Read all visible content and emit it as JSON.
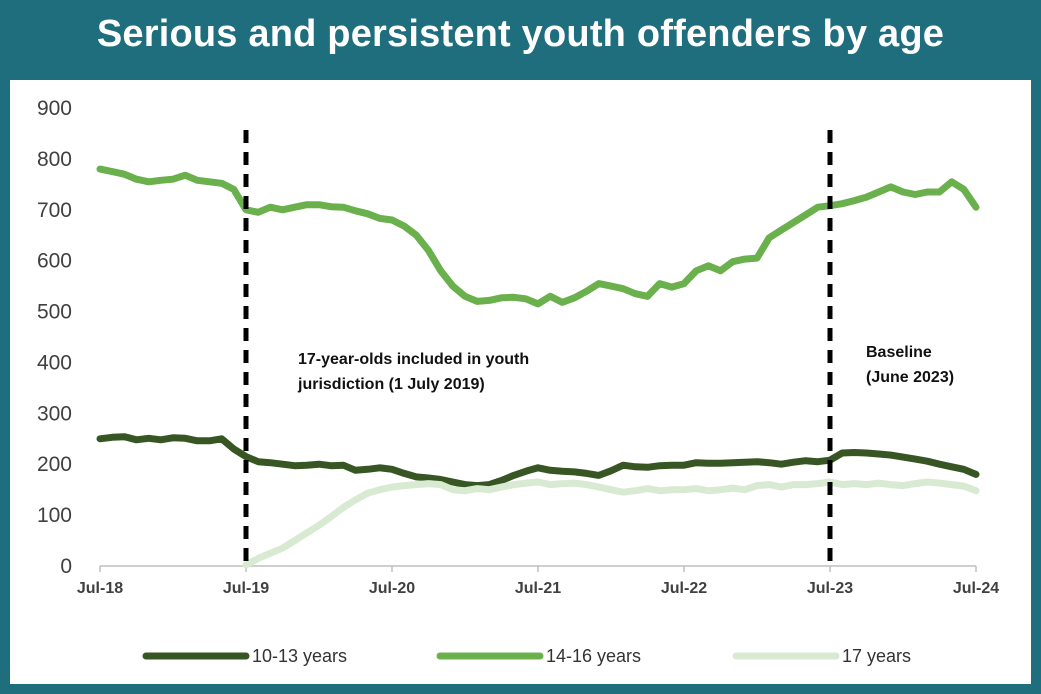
{
  "title": "Serious and persistent youth offenders by age",
  "chart_data": {
    "type": "line",
    "title": "Serious and persistent youth offenders by age",
    "xlabel": "",
    "ylabel": "",
    "ylim": [
      0,
      900
    ],
    "yticks": [
      0,
      100,
      200,
      300,
      400,
      500,
      600,
      700,
      800,
      900
    ],
    "xlim": [
      0,
      72
    ],
    "xticks": [
      {
        "x": 0,
        "label": "Jul-18"
      },
      {
        "x": 12,
        "label": "Jul-19"
      },
      {
        "x": 24,
        "label": "Jul-20"
      },
      {
        "x": 36,
        "label": "Jul-21"
      },
      {
        "x": 48,
        "label": "Jul-22"
      },
      {
        "x": 60,
        "label": "Jul-23"
      },
      {
        "x": 72,
        "label": "Jul-24"
      }
    ],
    "grid": false,
    "legend_position": "bottom",
    "vlines": [
      {
        "x": 12,
        "label": [
          "17-year-olds included in youth",
          "jurisdiction (1 July 2019)"
        ]
      },
      {
        "x": 60,
        "label": [
          "Baseline",
          "(June 2023)"
        ]
      }
    ],
    "series": [
      {
        "name": "10-13 years",
        "color": "#375623",
        "width": 7,
        "points": [
          [
            0,
            250
          ],
          [
            1,
            253
          ],
          [
            2,
            254
          ],
          [
            3,
            248
          ],
          [
            4,
            251
          ],
          [
            5,
            248
          ],
          [
            6,
            252
          ],
          [
            7,
            251
          ],
          [
            8,
            246
          ],
          [
            9,
            246
          ],
          [
            10,
            250
          ],
          [
            11,
            230
          ],
          [
            12,
            215
          ],
          [
            13,
            205
          ],
          [
            14,
            203
          ],
          [
            15,
            200
          ],
          [
            16,
            197
          ],
          [
            17,
            198
          ],
          [
            18,
            200
          ],
          [
            19,
            197
          ],
          [
            20,
            198
          ],
          [
            21,
            188
          ],
          [
            22,
            190
          ],
          [
            23,
            193
          ],
          [
            24,
            190
          ],
          [
            25,
            182
          ],
          [
            26,
            175
          ],
          [
            27,
            173
          ],
          [
            28,
            170
          ],
          [
            29,
            165
          ],
          [
            30,
            160
          ],
          [
            31,
            158
          ],
          [
            32,
            160
          ],
          [
            33,
            168
          ],
          [
            34,
            178
          ],
          [
            35,
            186
          ],
          [
            36,
            193
          ],
          [
            37,
            188
          ],
          [
            38,
            186
          ],
          [
            39,
            185
          ],
          [
            40,
            182
          ],
          [
            41,
            178
          ],
          [
            42,
            187
          ],
          [
            43,
            198
          ],
          [
            44,
            195
          ],
          [
            45,
            194
          ],
          [
            46,
            197
          ],
          [
            47,
            198
          ],
          [
            48,
            198
          ],
          [
            49,
            203
          ],
          [
            50,
            202
          ],
          [
            51,
            202
          ],
          [
            52,
            203
          ],
          [
            53,
            204
          ],
          [
            54,
            205
          ],
          [
            55,
            203
          ],
          [
            56,
            200
          ],
          [
            57,
            204
          ],
          [
            58,
            207
          ],
          [
            59,
            205
          ],
          [
            60,
            208
          ],
          [
            61,
            222
          ],
          [
            62,
            223
          ],
          [
            63,
            222
          ],
          [
            64,
            220
          ],
          [
            65,
            218
          ],
          [
            66,
            214
          ],
          [
            67,
            210
          ],
          [
            68,
            206
          ],
          [
            69,
            200
          ],
          [
            70,
            195
          ],
          [
            71,
            190
          ],
          [
            72,
            180
          ]
        ]
      },
      {
        "name": "14-16 years",
        "color": "#6ab04c",
        "width": 7,
        "points": [
          [
            0,
            780
          ],
          [
            1,
            775
          ],
          [
            2,
            770
          ],
          [
            3,
            760
          ],
          [
            4,
            755
          ],
          [
            5,
            758
          ],
          [
            6,
            760
          ],
          [
            7,
            768
          ],
          [
            8,
            758
          ],
          [
            9,
            755
          ],
          [
            10,
            752
          ],
          [
            11,
            740
          ],
          [
            12,
            700
          ],
          [
            13,
            695
          ],
          [
            14,
            705
          ],
          [
            15,
            700
          ],
          [
            16,
            705
          ],
          [
            17,
            710
          ],
          [
            18,
            710
          ],
          [
            19,
            706
          ],
          [
            20,
            705
          ],
          [
            21,
            698
          ],
          [
            22,
            692
          ],
          [
            23,
            683
          ],
          [
            24,
            680
          ],
          [
            25,
            668
          ],
          [
            26,
            650
          ],
          [
            27,
            620
          ],
          [
            28,
            580
          ],
          [
            29,
            550
          ],
          [
            30,
            530
          ],
          [
            31,
            520
          ],
          [
            32,
            522
          ],
          [
            33,
            527
          ],
          [
            34,
            528
          ],
          [
            35,
            525
          ],
          [
            36,
            515
          ],
          [
            37,
            530
          ],
          [
            38,
            518
          ],
          [
            39,
            527
          ],
          [
            40,
            540
          ],
          [
            41,
            555
          ],
          [
            42,
            550
          ],
          [
            43,
            545
          ],
          [
            44,
            535
          ],
          [
            45,
            530
          ],
          [
            46,
            555
          ],
          [
            47,
            548
          ],
          [
            48,
            555
          ],
          [
            49,
            580
          ],
          [
            50,
            590
          ],
          [
            51,
            580
          ],
          [
            52,
            598
          ],
          [
            53,
            603
          ],
          [
            54,
            605
          ],
          [
            55,
            645
          ],
          [
            56,
            660
          ],
          [
            57,
            675
          ],
          [
            58,
            690
          ],
          [
            59,
            705
          ],
          [
            60,
            708
          ],
          [
            61,
            712
          ],
          [
            62,
            718
          ],
          [
            63,
            725
          ],
          [
            64,
            735
          ],
          [
            65,
            745
          ],
          [
            66,
            735
          ],
          [
            67,
            730
          ],
          [
            68,
            735
          ],
          [
            69,
            735
          ],
          [
            70,
            755
          ],
          [
            71,
            740
          ],
          [
            72,
            705
          ]
        ]
      },
      {
        "name": "17 years",
        "color": "#d9ead3",
        "width": 7,
        "points": [
          [
            12,
            2
          ],
          [
            13,
            15
          ],
          [
            14,
            25
          ],
          [
            15,
            35
          ],
          [
            16,
            50
          ],
          [
            17,
            65
          ],
          [
            18,
            80
          ],
          [
            19,
            97
          ],
          [
            20,
            115
          ],
          [
            21,
            130
          ],
          [
            22,
            143
          ],
          [
            23,
            150
          ],
          [
            24,
            155
          ],
          [
            25,
            158
          ],
          [
            26,
            160
          ],
          [
            27,
            162
          ],
          [
            28,
            160
          ],
          [
            29,
            150
          ],
          [
            30,
            148
          ],
          [
            31,
            152
          ],
          [
            32,
            150
          ],
          [
            33,
            155
          ],
          [
            34,
            160
          ],
          [
            35,
            163
          ],
          [
            36,
            165
          ],
          [
            37,
            160
          ],
          [
            38,
            162
          ],
          [
            39,
            163
          ],
          [
            40,
            160
          ],
          [
            41,
            155
          ],
          [
            42,
            150
          ],
          [
            43,
            145
          ],
          [
            44,
            148
          ],
          [
            45,
            152
          ],
          [
            46,
            148
          ],
          [
            47,
            150
          ],
          [
            48,
            150
          ],
          [
            49,
            152
          ],
          [
            50,
            148
          ],
          [
            51,
            150
          ],
          [
            52,
            153
          ],
          [
            53,
            150
          ],
          [
            54,
            158
          ],
          [
            55,
            160
          ],
          [
            56,
            155
          ],
          [
            57,
            160
          ],
          [
            58,
            160
          ],
          [
            59,
            162
          ],
          [
            60,
            165
          ],
          [
            61,
            160
          ],
          [
            62,
            162
          ],
          [
            63,
            160
          ],
          [
            64,
            163
          ],
          [
            65,
            160
          ],
          [
            66,
            158
          ],
          [
            67,
            162
          ],
          [
            68,
            165
          ],
          [
            69,
            163
          ],
          [
            70,
            160
          ],
          [
            71,
            157
          ],
          [
            72,
            148
          ]
        ]
      }
    ]
  }
}
